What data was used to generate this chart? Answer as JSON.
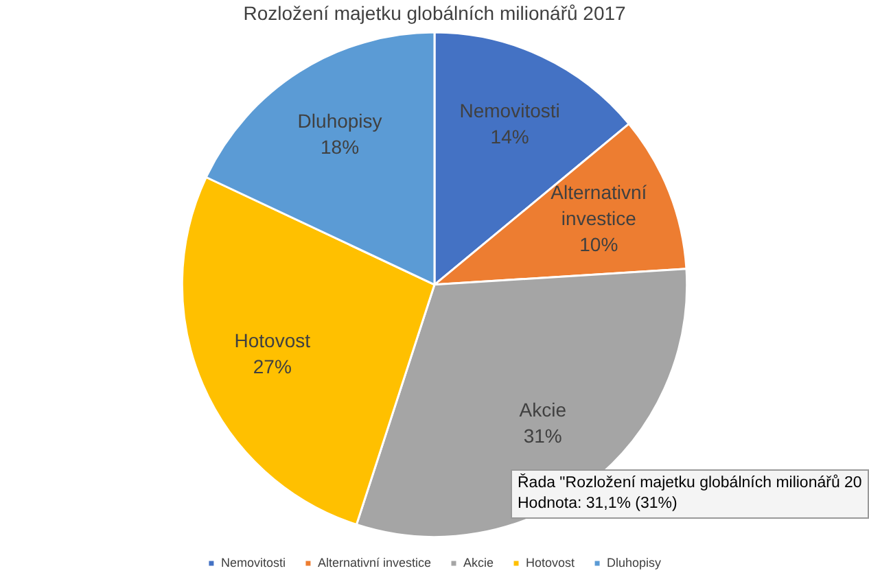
{
  "chart_data": {
    "type": "pie",
    "title": "Rozložení majetku globálních milionářů 2017",
    "categories": [
      "Nemovitosti",
      "Alternativní investice",
      "Akcie",
      "Hotovost",
      "Dluhopisy"
    ],
    "values": [
      14,
      10,
      31,
      27,
      18
    ],
    "value_labels": [
      "14%",
      "10%",
      "31%",
      "27%",
      "18%"
    ],
    "colors": [
      "#4472c4",
      "#ed7d31",
      "#a5a5a5",
      "#ffc000",
      "#5b9bd5"
    ],
    "legend": "bottom",
    "annotations": [
      "Řada \"Rozložení majetku globálních milionářů 20",
      "Hodnota: 31,1% (31%)"
    ]
  }
}
